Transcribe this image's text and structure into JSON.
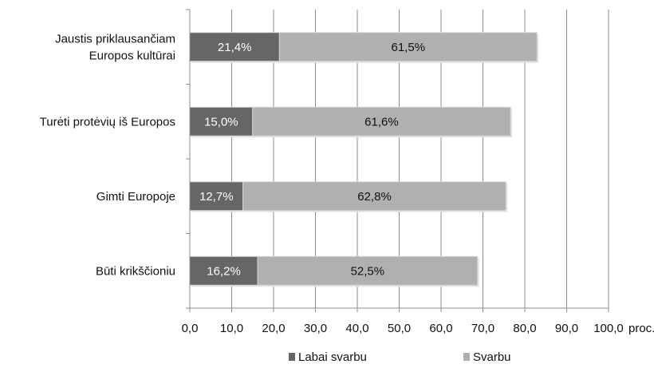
{
  "chart_data": {
    "type": "bar",
    "orientation": "horizontal",
    "stacked": true,
    "categories": [
      [
        "Jaustis priklausančiam",
        "Europos kultūrai"
      ],
      [
        "Turėti protėvių iš Europos"
      ],
      [
        "Gimti Europoje"
      ],
      [
        "Būti krikščioniu"
      ]
    ],
    "series": [
      {
        "name": "Labai svarbu",
        "color": "#666666",
        "label_color": "#ffffff",
        "values": [
          21.4,
          15.0,
          12.7,
          16.2
        ],
        "labels": [
          "21,4%",
          "15,0%",
          "12,7%",
          "16,2%"
        ]
      },
      {
        "name": "Svarbu",
        "color": "#b0b0b0",
        "label_color": "#111111",
        "values": [
          61.5,
          61.6,
          62.8,
          52.5
        ],
        "labels": [
          "61,5%",
          "61,6%",
          "62,8%",
          "52,5%"
        ]
      }
    ],
    "xlim": [
      0,
      100
    ],
    "x_ticks": [
      0,
      10,
      20,
      30,
      40,
      50,
      60,
      70,
      80,
      90,
      100
    ],
    "x_tick_labels": [
      "0,0",
      "10,0",
      "20,0",
      "30,0",
      "40,0",
      "50,0",
      "60,0",
      "70,0",
      "80,0",
      "90,0",
      "100,0"
    ],
    "x_unit_label": "proc.",
    "grid": "vertical",
    "legend_position": "bottom",
    "colors": {
      "grid": "#8c8c8c",
      "axis": "#8c8c8c",
      "bar_outline": "#d6d6d6"
    }
  }
}
